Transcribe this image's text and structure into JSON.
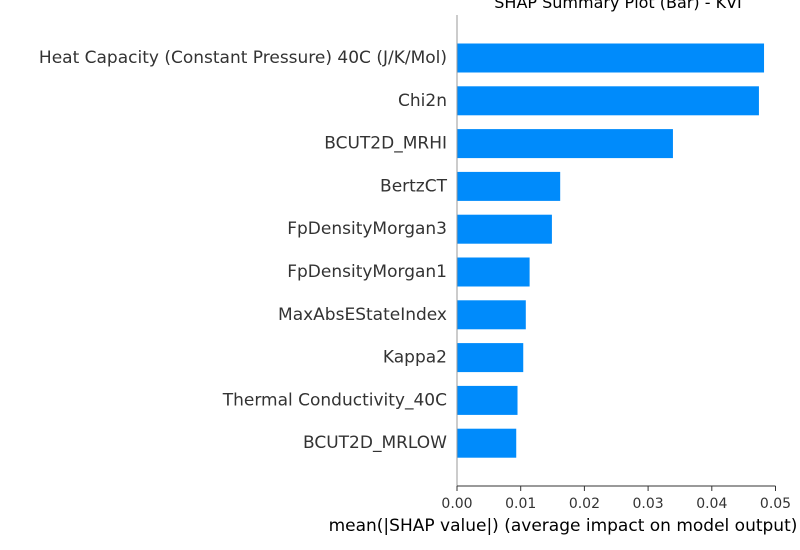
{
  "chart_data": {
    "type": "bar",
    "orientation": "horizontal",
    "title": "SHAP Summary Plot (Bar) - KVI",
    "xlabel": "mean(|SHAP value|) (average impact on model output)",
    "ylabel": "",
    "categories": [
      "Heat Capacity (Constant Pressure) 40C (J/K/Mol)",
      "Chi2n",
      "BCUT2D_MRHI",
      "BertzCT",
      "FpDensityMorgan3",
      "FpDensityMorgan1",
      "MaxAbsEStateIndex",
      "Kappa2",
      "Thermal Conductivity_40C",
      "BCUT2D_MRLOW"
    ],
    "values": [
      0.0482,
      0.0474,
      0.0339,
      0.0162,
      0.0149,
      0.0114,
      0.0108,
      0.0104,
      0.0095,
      0.0093
    ],
    "xlim": [
      0,
      0.05
    ],
    "xticks": [
      0.0,
      0.01,
      0.02,
      0.03,
      0.04,
      0.05
    ],
    "xtick_labels": [
      "0.00",
      "0.01",
      "0.02",
      "0.03",
      "0.04",
      "0.05"
    ],
    "bar_color": "#008bfb",
    "grid": false
  }
}
